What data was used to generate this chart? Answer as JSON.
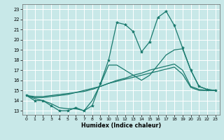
{
  "xlabel": "Humidex (Indice chaleur)",
  "xlim": [
    -0.5,
    23.5
  ],
  "ylim": [
    12.6,
    23.5
  ],
  "yticks": [
    13,
    14,
    15,
    16,
    17,
    18,
    19,
    20,
    21,
    22,
    23
  ],
  "xticks": [
    0,
    1,
    2,
    3,
    4,
    5,
    6,
    7,
    8,
    9,
    10,
    11,
    12,
    13,
    14,
    15,
    16,
    17,
    18,
    19,
    20,
    21,
    22,
    23
  ],
  "bg_color": "#c8e8e8",
  "line_color": "#1a7a6e",
  "grid_color": "#ffffff",
  "series": [
    {
      "x": [
        0,
        1,
        2,
        3,
        4,
        5,
        6,
        7,
        8,
        9,
        10,
        11,
        12,
        13,
        14,
        15,
        16,
        17,
        18,
        19,
        20,
        21,
        22,
        23
      ],
      "y": [
        14.5,
        14.0,
        14.0,
        13.5,
        13.0,
        13.0,
        13.3,
        13.0,
        13.5,
        15.7,
        18.0,
        21.7,
        21.5,
        20.8,
        18.8,
        19.8,
        22.2,
        22.8,
        21.4,
        19.2,
        17.0,
        15.4,
        15.1,
        15.0
      ],
      "marker": true
    },
    {
      "x": [
        0,
        1,
        2,
        3,
        4,
        5,
        6,
        7,
        8,
        9,
        10,
        11,
        12,
        13,
        14,
        15,
        16,
        17,
        18,
        19,
        20,
        21,
        22,
        23
      ],
      "y": [
        14.5,
        14.2,
        14.0,
        13.7,
        13.3,
        13.2,
        13.2,
        13.0,
        14.0,
        15.6,
        17.5,
        17.5,
        17.0,
        16.5,
        16.0,
        16.5,
        17.5,
        18.5,
        19.0,
        19.1,
        17.0,
        15.4,
        15.1,
        15.0
      ],
      "marker": false
    },
    {
      "x": [
        0,
        1,
        2,
        3,
        4,
        5,
        6,
        7,
        8,
        9,
        10,
        11,
        12,
        13,
        14,
        15,
        16,
        17,
        18,
        19,
        20,
        21,
        22,
        23
      ],
      "y": [
        14.5,
        14.3,
        14.3,
        14.4,
        14.5,
        14.6,
        14.8,
        14.9,
        15.1,
        15.4,
        15.7,
        16.0,
        16.2,
        16.5,
        16.7,
        17.0,
        17.2,
        17.4,
        17.6,
        17.0,
        15.4,
        15.1,
        15.0,
        15.0
      ],
      "marker": false
    },
    {
      "x": [
        0,
        1,
        2,
        3,
        4,
        5,
        6,
        7,
        8,
        9,
        10,
        11,
        12,
        13,
        14,
        15,
        16,
        17,
        18,
        19,
        20,
        21,
        22,
        23
      ],
      "y": [
        14.5,
        14.4,
        14.4,
        14.5,
        14.6,
        14.7,
        14.8,
        15.0,
        15.2,
        15.4,
        15.7,
        15.9,
        16.1,
        16.3,
        16.5,
        16.7,
        16.9,
        17.1,
        17.3,
        16.6,
        15.3,
        15.0,
        15.0,
        15.0
      ],
      "marker": false
    }
  ]
}
